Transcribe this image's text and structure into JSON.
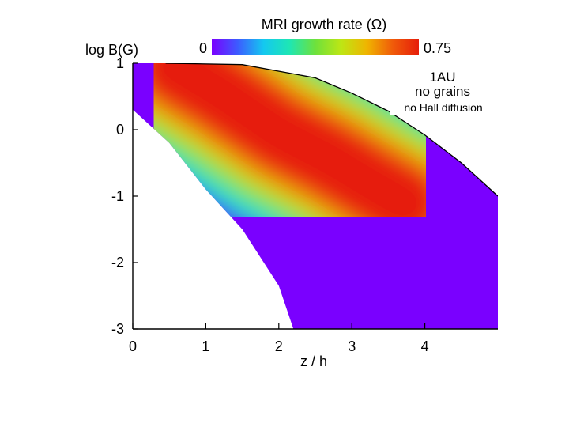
{
  "chart_data": {
    "type": "heatmap",
    "title": "MRI growth rate (Ω)",
    "xlabel": "z / h",
    "ylabel": "log B(G)",
    "xlim": [
      0,
      5
    ],
    "ylim": [
      -3,
      1
    ],
    "x_ticks": [
      "0",
      "1",
      "2",
      "3",
      "4"
    ],
    "y_ticks": [
      "1",
      "0",
      "-1",
      "-2",
      "-3"
    ],
    "colorbar": {
      "min_label": "0",
      "max_label": "0.75",
      "min": 0,
      "max": 0.75,
      "colors": [
        "#7a00ff",
        "#3c5cff",
        "#14c8f0",
        "#1ee6b4",
        "#6ee13c",
        "#bee614",
        "#f0b400",
        "#f05a0a",
        "#e61e0a"
      ]
    },
    "annotations": [
      "1AU",
      "no grains",
      "no Hall diffusion"
    ],
    "active_region": {
      "description_free": true,
      "upper_boundary": [
        [
          0.45,
          1.0
        ],
        [
          1.5,
          0.98
        ],
        [
          2.5,
          0.78
        ],
        [
          3.0,
          0.55
        ],
        [
          3.5,
          0.28
        ],
        [
          4.0,
          -0.08
        ],
        [
          4.5,
          -0.5
        ],
        [
          5.0,
          -1.0
        ]
      ],
      "lower_boundary": [
        [
          0.0,
          0.3
        ],
        [
          0.5,
          -0.2
        ],
        [
          1.0,
          -0.9
        ],
        [
          1.5,
          -1.5
        ],
        [
          2.0,
          -2.35
        ],
        [
          2.2,
          -3.0
        ]
      ],
      "peak_ridge": [
        [
          0.6,
          0.95
        ],
        [
          1.2,
          0.55
        ],
        [
          2.0,
          -0.05
        ],
        [
          2.7,
          -0.45
        ],
        [
          3.3,
          -0.85
        ],
        [
          3.7,
          -1.1
        ]
      ]
    }
  }
}
